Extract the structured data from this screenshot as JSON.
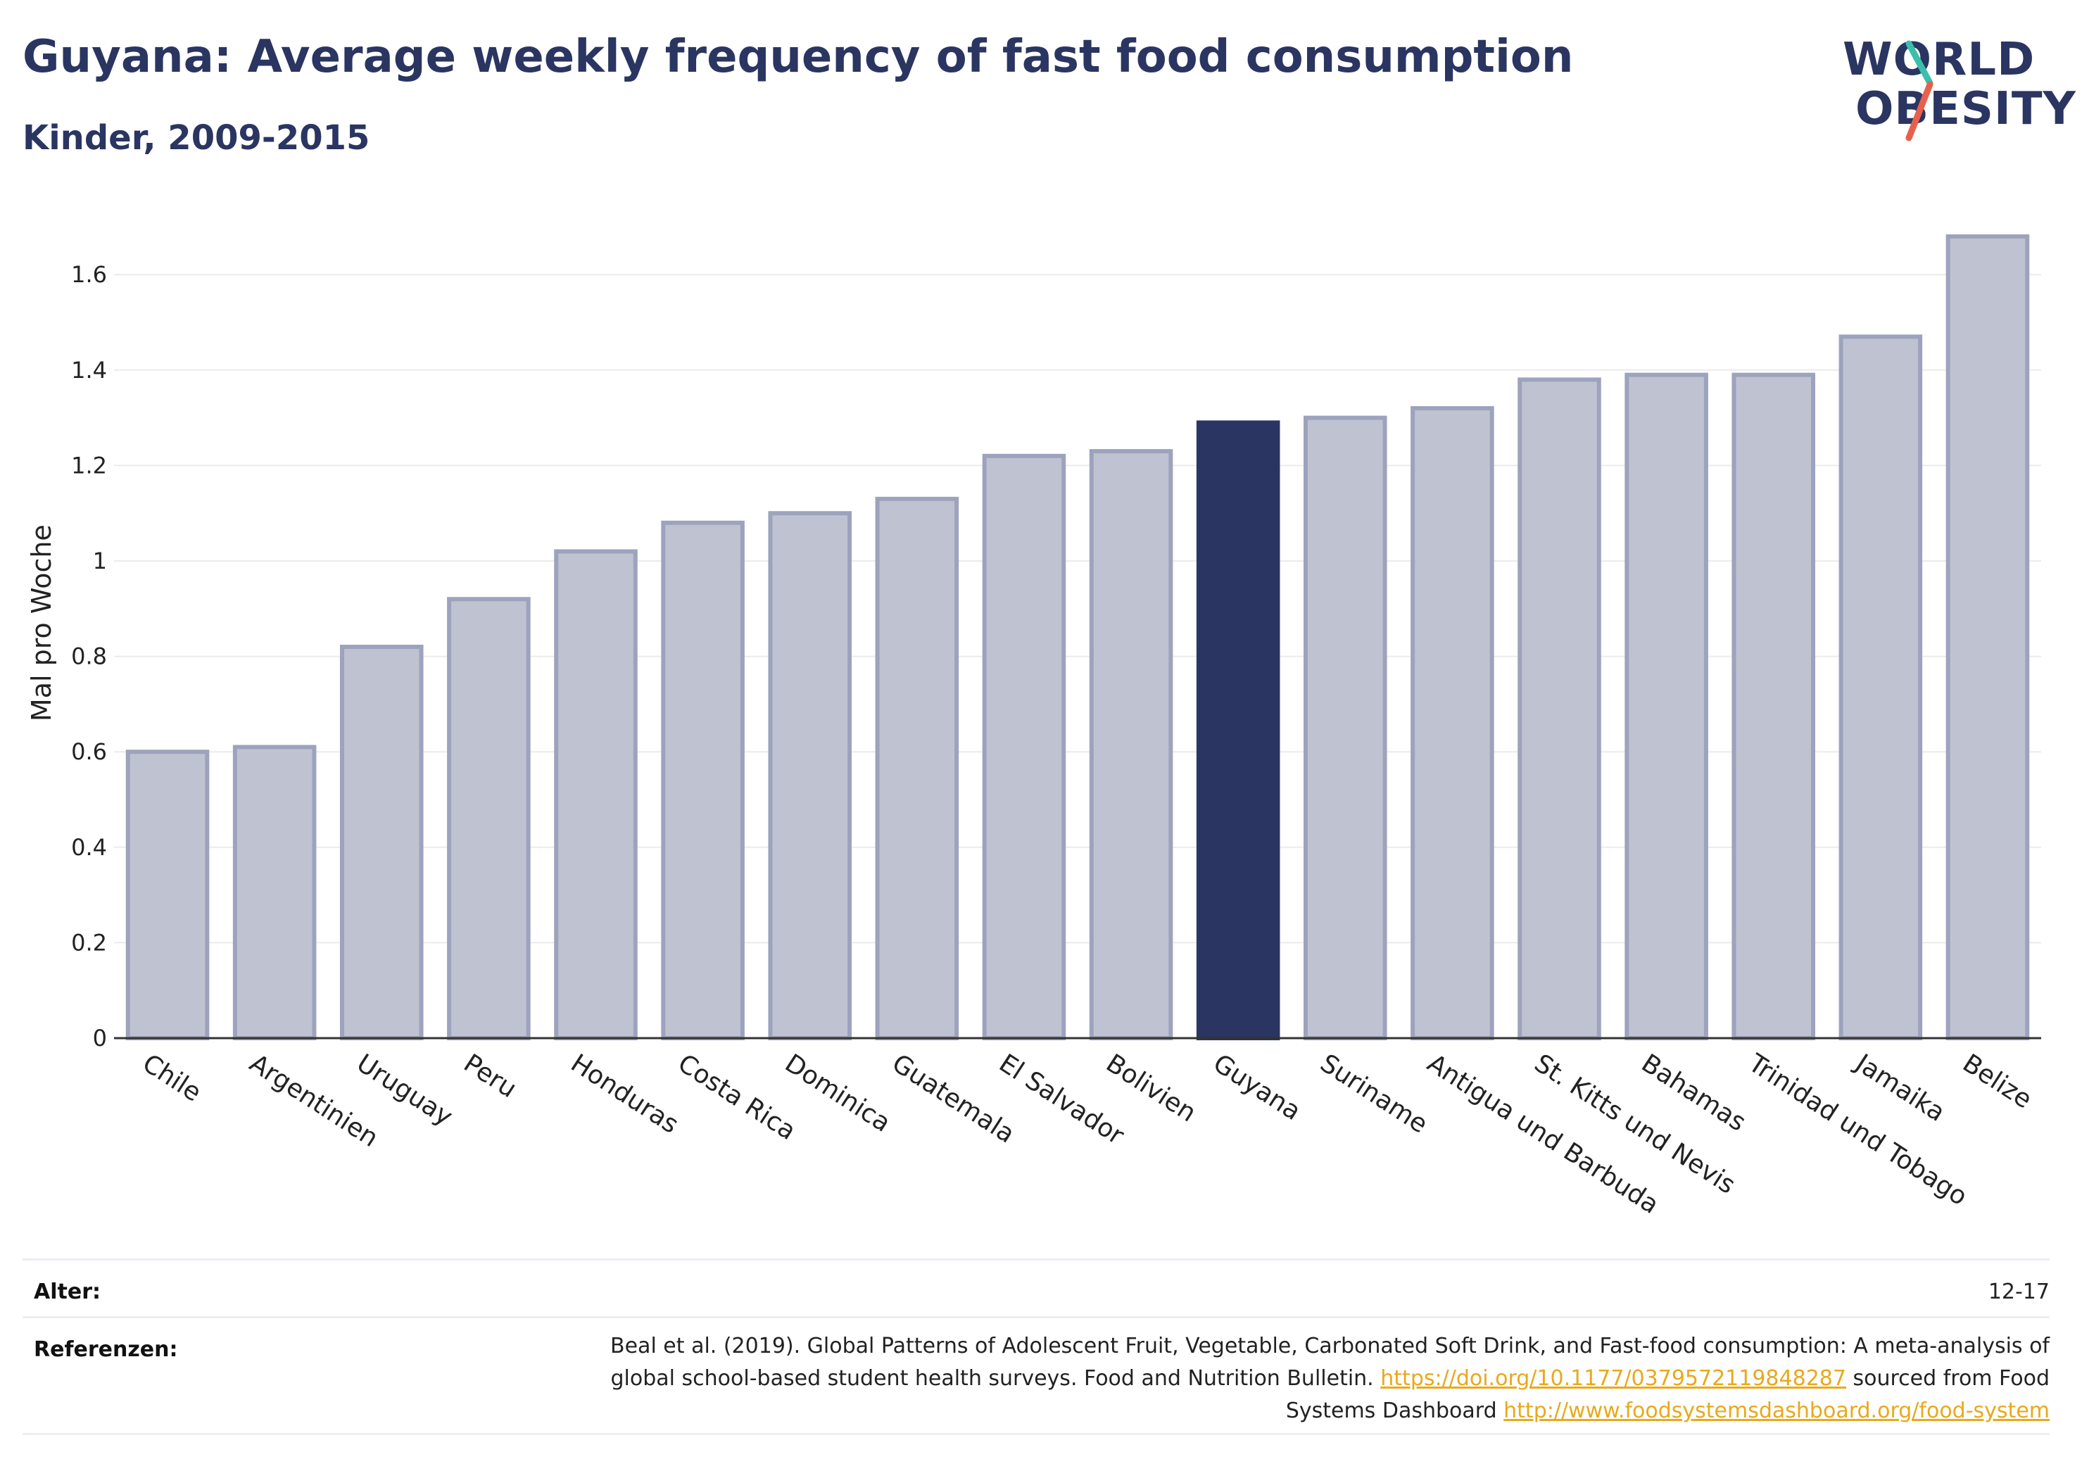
{
  "header": {
    "title": "Guyana: Average weekly frequency of fast food consumption",
    "subtitle": "Kinder, 2009-2015"
  },
  "logo": {
    "line1": "WORLD",
    "line2": "OBESITY",
    "accent_teal": "#3bbfad",
    "accent_red": "#e8604c"
  },
  "chart_data": {
    "type": "bar",
    "categories": [
      "Chile",
      "Argentinien",
      "Uruguay",
      "Peru",
      "Honduras",
      "Costa Rica",
      "Dominica",
      "Guatemala",
      "El Salvador",
      "Bolivien",
      "Guyana",
      "Suriname",
      "Antigua und Barbuda",
      "St. Kitts und Nevis",
      "Bahamas",
      "Trinidad und Tobago",
      "Jamaika",
      "Belize"
    ],
    "values": [
      0.6,
      0.61,
      0.82,
      0.92,
      1.02,
      1.08,
      1.1,
      1.13,
      1.22,
      1.23,
      1.29,
      1.3,
      1.32,
      1.38,
      1.39,
      1.39,
      1.47,
      1.68
    ],
    "highlight": "Guyana",
    "ylabel": "Mal pro Woche",
    "xlabel": "",
    "ylim": [
      0,
      1.75
    ],
    "yticks": [
      0,
      0.2,
      0.4,
      0.6,
      0.8,
      1,
      1.2,
      1.4,
      1.6
    ],
    "ytick_labels": [
      "0",
      "0.2",
      "0.4",
      "0.6",
      "0.8",
      "1",
      "1.2",
      "1.4",
      "1.6"
    ],
    "grid": true,
    "colors": {
      "bar": "#bfc2d0",
      "bar_border": "#9da3bd",
      "highlight": "#2a3561"
    }
  },
  "footer": {
    "age_label": "Alter:",
    "age_value": "12-17",
    "refs_label": "Referenzen:",
    "refs_text_1": "Beal et al. (2019). Global Patterns of Adolescent Fruit, Vegetable, Carbonated Soft Drink, and Fast-food consumption: A meta-analysis of global school-based student health surveys. Food and Nutrition Bulletin.",
    "refs_link_1": "https://doi.org/10.1177/0379572119848287",
    "refs_text_2": "sourced from Food Systems Dashboard",
    "refs_link_2": "http://www.foodsystemsdashboard.org/food-system"
  }
}
